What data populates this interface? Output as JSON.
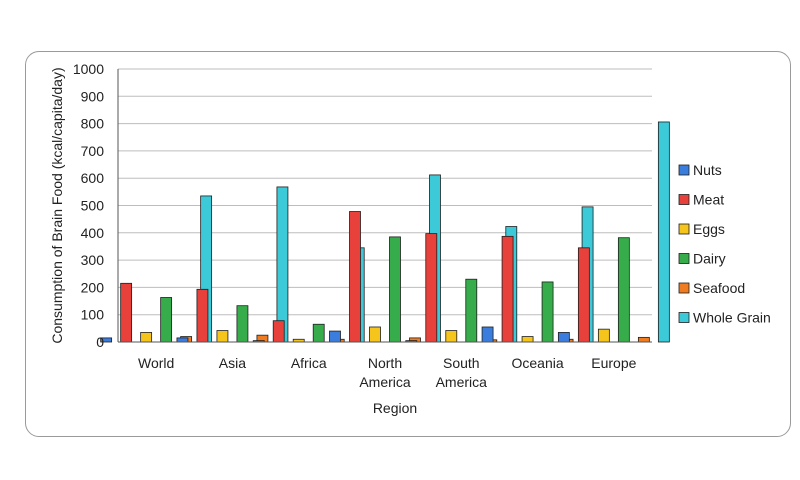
{
  "chart_data": {
    "type": "bar",
    "title": "",
    "xlabel": "Region",
    "ylabel": "Consumption of Brain Food (kcal/capita/day)",
    "ylim": [
      0,
      1000
    ],
    "yticks": [
      0,
      100,
      200,
      300,
      400,
      500,
      600,
      700,
      800,
      900,
      1000
    ],
    "categories": [
      "World",
      "Asia",
      "Africa",
      "North America",
      "South America",
      "Oceania",
      "Europe"
    ],
    "category_lines": [
      [
        "World"
      ],
      [
        "Asia"
      ],
      [
        "Africa"
      ],
      [
        "North",
        "America"
      ],
      [
        "South",
        "America"
      ],
      [
        "Oceania"
      ],
      [
        "Europe"
      ]
    ],
    "grid": true,
    "legend_position": "right",
    "series": [
      {
        "name": "Nuts",
        "color": "#3b7ddd",
        "values": [
          15,
          15,
          5,
          40,
          5,
          55,
          35
        ]
      },
      {
        "name": "Meat",
        "color": "#e8403a",
        "values": [
          215,
          193,
          78,
          478,
          397,
          387,
          345
        ]
      },
      {
        "name": "Eggs",
        "color": "#f5c51c",
        "values": [
          35,
          42,
          10,
          55,
          42,
          20,
          47
        ]
      },
      {
        "name": "Dairy",
        "color": "#36ad4a",
        "values": [
          163,
          133,
          65,
          385,
          230,
          220,
          382
        ]
      },
      {
        "name": "Seafood",
        "color": "#f07c22",
        "values": [
          20,
          25,
          10,
          15,
          8,
          10,
          17
        ]
      },
      {
        "name": "Whole Grain",
        "color": "#3cc9d8",
        "values": [
          535,
          568,
          345,
          612,
          423,
          495,
          806
        ]
      }
    ]
  }
}
